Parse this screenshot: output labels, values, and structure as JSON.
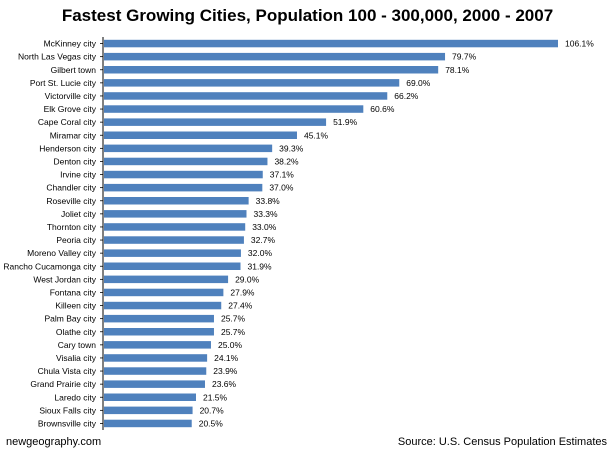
{
  "chart_data": {
    "type": "bar",
    "orientation": "horizontal",
    "title": "Fastest Growing Cities, Population 100 - 300,000, 2000 - 2007",
    "bar_color": "#4f81bd",
    "value_suffix": "%",
    "categories": [
      "McKinney city",
      "North Las Vegas city",
      "Gilbert town",
      "Port St. Lucie city",
      "Victorville city",
      "Elk Grove city",
      "Cape Coral city",
      "Miramar city",
      "Henderson city",
      "Denton city",
      "Irvine city",
      "Chandler city",
      "Roseville city",
      "Joliet city",
      "Thornton city",
      "Peoria city",
      "Moreno Valley city",
      "Rancho Cucamonga city",
      "West Jordan city",
      "Fontana city",
      "Killeen city",
      "Palm Bay city",
      "Olathe city",
      "Cary town",
      "Visalia city",
      "Chula Vista city",
      "Grand Prairie city",
      "Laredo city",
      "Sioux Falls city",
      "Brownsville city"
    ],
    "values": [
      106.1,
      79.7,
      78.1,
      69.0,
      66.2,
      60.6,
      51.9,
      45.1,
      39.3,
      38.2,
      37.1,
      37.0,
      33.8,
      33.3,
      33.0,
      32.7,
      32.0,
      31.9,
      29.0,
      27.9,
      27.4,
      25.7,
      25.7,
      25.0,
      24.1,
      23.9,
      23.6,
      21.5,
      20.7,
      20.5
    ],
    "value_labels": [
      "106.1%",
      "79.7%",
      "78.1%",
      "69.0%",
      "66.2%",
      "60.6%",
      "51.9%",
      "45.1%",
      "39.3%",
      "38.2%",
      "37.1%",
      "37.0%",
      "33.8%",
      "33.3%",
      "33.0%",
      "32.7%",
      "32.0%",
      "31.9%",
      "29.0%",
      "27.9%",
      "27.4%",
      "25.7%",
      "25.7%",
      "25.0%",
      "24.1%",
      "23.9%",
      "23.6%",
      "21.5%",
      "20.7%",
      "20.5%"
    ],
    "xlim": [
      0,
      106.1
    ],
    "grid": false
  },
  "footer": {
    "source_left": "newgeography.com",
    "source_right": "Source: U.S. Census Population Estimates"
  }
}
